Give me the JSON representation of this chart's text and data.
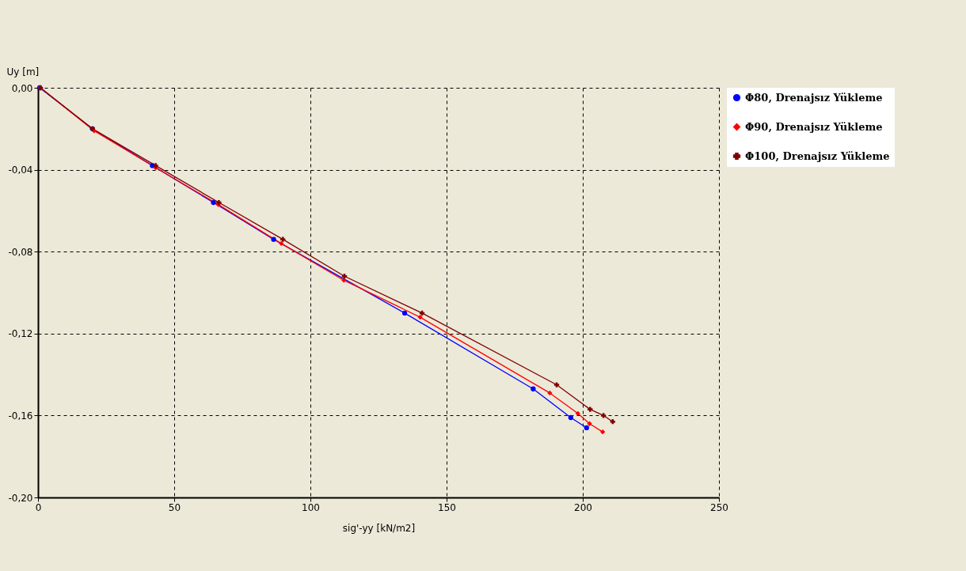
{
  "chart_data": {
    "type": "line",
    "xlabel": "sig'-yy [kN/m2]",
    "ylabel": "Uy [m]",
    "xlim": [
      0,
      250
    ],
    "xticks": [
      0,
      50,
      100,
      150,
      200,
      250
    ],
    "ylim": [
      -0.2,
      0
    ],
    "yticks": [
      {
        "value": 0,
        "label": "0,00"
      },
      {
        "value": -0.04,
        "label": "-0,04"
      },
      {
        "value": -0.08,
        "label": "-0,08"
      },
      {
        "value": -0.12,
        "label": "-0,12"
      },
      {
        "value": -0.16,
        "label": "-0,16"
      },
      {
        "value": -0.2,
        "label": "-0,20"
      }
    ],
    "grid": true,
    "legend": "right",
    "line_style": "solid",
    "series": [
      {
        "name": "Φ80, Drenajsız Yükleme",
        "color": "#0000ff",
        "marker": "circle",
        "x": [
          0.6,
          20,
          42,
          64.4,
          86.5,
          134.6,
          181.8,
          195.6,
          201.4
        ],
        "values": [
          0,
          -0.02,
          -0.038,
          -0.056,
          -0.074,
          -0.11,
          -0.147,
          -0.161,
          -0.166
        ]
      },
      {
        "name": "Φ90, Drenajsız Yükleme",
        "color": "#ff0000",
        "marker": "diamond",
        "x": [
          0.9,
          20.6,
          43.2,
          66.2,
          89.3,
          112.3,
          140.3,
          187.9,
          198.2,
          202.5,
          207.3
        ],
        "values": [
          0,
          -0.021,
          -0.039,
          -0.057,
          -0.076,
          -0.094,
          -0.112,
          -0.149,
          -0.159,
          -0.164,
          -0.168
        ]
      },
      {
        "name": "Φ100, Drenajsız Yükleme",
        "color": "#800000",
        "marker": "cross",
        "x": [
          0.9,
          20,
          43.2,
          66.4,
          89.9,
          112.5,
          141,
          190.4,
          202.7,
          207.6,
          211
        ],
        "values": [
          0,
          -0.02,
          -0.038,
          -0.056,
          -0.074,
          -0.092,
          -0.11,
          -0.145,
          -0.157,
          -0.16,
          -0.163
        ]
      }
    ]
  }
}
